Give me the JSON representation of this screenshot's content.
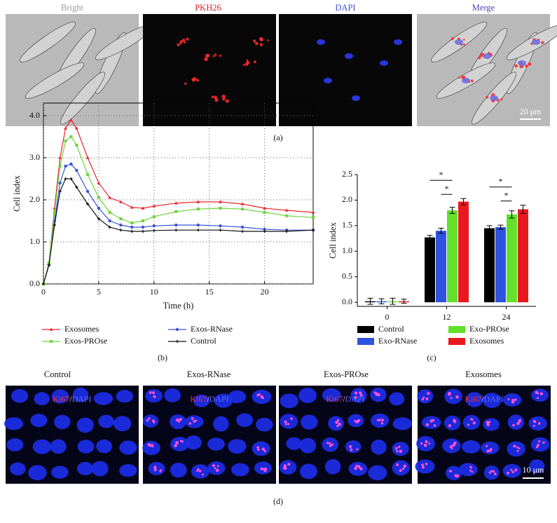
{
  "panel_a": {
    "label": "(a)",
    "titles": [
      "Bright",
      "PKH26",
      "DAPI",
      "Merge"
    ],
    "scale_bar": "20 μm"
  },
  "chart_data": [
    {
      "type": "line",
      "panel_label": "(b)",
      "x_label": "Time (h)",
      "y_label": "Cell index",
      "x": [
        0,
        0.5,
        1,
        1.5,
        2,
        2.5,
        3,
        4,
        5,
        6,
        7,
        8,
        9,
        10,
        12,
        14,
        16,
        18,
        20,
        22,
        24.4
      ],
      "series": [
        {
          "name": "Exosomes",
          "color": "#e8262a",
          "values": [
            0,
            0.5,
            1.8,
            3.0,
            3.7,
            3.9,
            3.7,
            3.0,
            2.4,
            2.05,
            1.95,
            1.82,
            1.8,
            1.85,
            1.92,
            1.95,
            1.95,
            1.9,
            1.8,
            1.75,
            1.7
          ]
        },
        {
          "name": "Exos-RNase",
          "color": "#3a55d6",
          "values": [
            0,
            0.45,
            1.5,
            2.4,
            2.8,
            2.85,
            2.7,
            2.2,
            1.8,
            1.5,
            1.4,
            1.35,
            1.35,
            1.38,
            1.4,
            1.4,
            1.38,
            1.35,
            1.3,
            1.28,
            1.28
          ]
        },
        {
          "name": "Exos-PROse",
          "color": "#6cd43a",
          "values": [
            0,
            0.5,
            1.7,
            2.8,
            3.4,
            3.5,
            3.3,
            2.6,
            2.05,
            1.7,
            1.55,
            1.45,
            1.5,
            1.6,
            1.72,
            1.78,
            1.8,
            1.78,
            1.7,
            1.62,
            1.58
          ]
        },
        {
          "name": "Control",
          "color": "#111111",
          "values": [
            0,
            0.45,
            1.4,
            2.2,
            2.5,
            2.5,
            2.3,
            1.9,
            1.55,
            1.35,
            1.28,
            1.25,
            1.25,
            1.27,
            1.28,
            1.28,
            1.28,
            1.25,
            1.25,
            1.25,
            1.28
          ]
        }
      ],
      "xlim": [
        0,
        24.4
      ],
      "xticks": [
        0,
        5,
        10,
        15,
        20
      ],
      "ylim": [
        0,
        4.3
      ],
      "yticks": [
        {
          "value": 0,
          "label": "0.0"
        },
        {
          "value": 1,
          "label": "1.0"
        },
        {
          "value": 2,
          "label": "2.0"
        },
        {
          "value": 3,
          "label": "3.0"
        },
        {
          "value": 4,
          "label": "4.0"
        }
      ],
      "grid": true
    },
    {
      "type": "bar",
      "panel_label": "(c)",
      "y_label": "Cell index",
      "categories": [
        "0",
        "12",
        "24"
      ],
      "series": [
        {
          "name": "Control",
          "color": "#000000",
          "values": [
            0.02,
            1.27,
            1.45
          ],
          "errors": [
            0.06,
            0.04,
            0.05
          ]
        },
        {
          "name": "Exo-RNase",
          "color": "#2f52e0",
          "values": [
            0.02,
            1.4,
            1.47
          ],
          "errors": [
            0.05,
            0.05,
            0.04
          ]
        },
        {
          "name": "Exo-PROse",
          "color": "#62e02a",
          "values": [
            0.02,
            1.8,
            1.72
          ],
          "errors": [
            0.06,
            0.06,
            0.07
          ]
        },
        {
          "name": "Exosomes",
          "color": "#e8191e",
          "values": [
            0.02,
            1.97,
            1.82
          ],
          "errors": [
            0.04,
            0.06,
            0.08
          ]
        }
      ],
      "ylim": [
        -0.08,
        2.5
      ],
      "yticks": [
        {
          "value": 0,
          "label": "0.0"
        },
        {
          "value": 0.5,
          "label": "0.5"
        },
        {
          "value": 1,
          "label": "1.0"
        },
        {
          "value": 1.5,
          "label": "1.5"
        },
        {
          "value": 2,
          "label": "2.0"
        },
        {
          "value": 2.5,
          "label": "2.5"
        }
      ],
      "annotations": [
        "*",
        "*",
        "*",
        "*"
      ]
    }
  ],
  "panel_d": {
    "label": "(d)",
    "titles": [
      "Control",
      "Exos-RNase",
      "Exos-PROse",
      "Exosomes"
    ],
    "stain": [
      "Ki67",
      "/",
      "DAPI"
    ],
    "scale_bar": "10 μm"
  }
}
